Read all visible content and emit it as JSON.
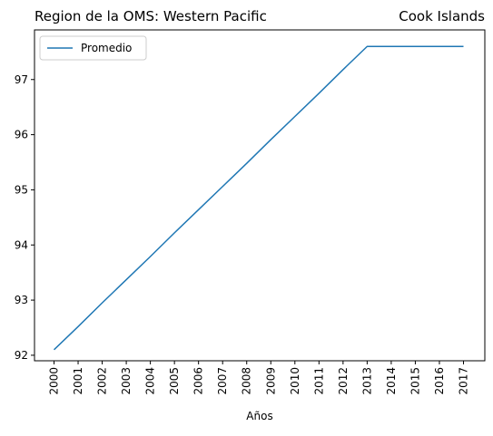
{
  "chart_data": {
    "type": "line",
    "title_left": "Region de la OMS: Western Pacific",
    "title_right": "Cook Islands",
    "xlabel": "Años",
    "ylabel": "",
    "x": [
      "2000",
      "2001",
      "2002",
      "2003",
      "2004",
      "2005",
      "2006",
      "2007",
      "2008",
      "2009",
      "2010",
      "2011",
      "2012",
      "2013",
      "2014",
      "2015",
      "2016",
      "2017"
    ],
    "y_ticks": [
      "92",
      "93",
      "94",
      "95",
      "96",
      "97"
    ],
    "ylim": [
      91.9,
      97.9
    ],
    "series": [
      {
        "name": "Promedio",
        "color": "#1f77b4",
        "values": [
          92.1,
          92.52,
          92.95,
          93.37,
          93.79,
          94.22,
          94.64,
          95.06,
          95.48,
          95.91,
          96.33,
          96.75,
          97.18,
          97.6,
          97.6,
          97.6,
          97.6,
          97.6
        ]
      }
    ],
    "legend_position": "upper left",
    "grid": false
  }
}
